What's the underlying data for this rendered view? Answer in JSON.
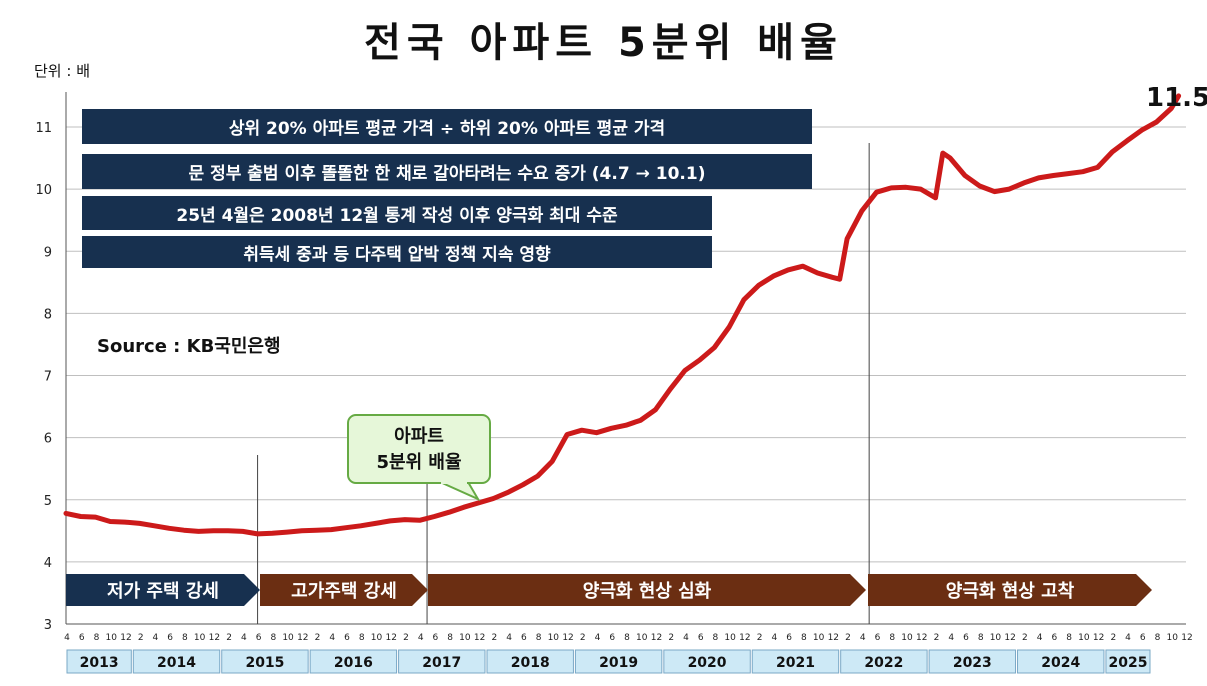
{
  "title": "전국 아파트 5분위 배율",
  "unit_label": "단위 : 배",
  "source": "Source  : KB국민은행",
  "info_boxes": [
    "상위 20% 아파트 평균 가격 ÷ 하위 20% 아파트 평균 가격",
    "문 정부 출범 이후 똘똘한 한 채로 갈아타려는 수요 증가 (4.7 → 10.1)",
    "25년 4월은 2008년 12월 통계 작성 이후 양극화 최대 수준",
    "취득세 중과 등 다주택 압박 정책 지속 영향"
  ],
  "callout_lines": [
    "아파트",
    "5분위 배율"
  ],
  "end_label": "11.5",
  "phases": [
    {
      "label": "저가 주택 강세",
      "color": "#17304f"
    },
    {
      "label": "고가주택 강세",
      "color": "#6b2e12"
    },
    {
      "label": "양극화 현상 심화",
      "color": "#6b2e12"
    },
    {
      "label": "양극화 현상 고착",
      "color": "#6b2e12"
    }
  ],
  "colors": {
    "line": "#cc1a1a",
    "box": "#17304f",
    "phase_brown": "#6b2e12",
    "year_band": "#cde9f6"
  },
  "chart_data": {
    "type": "line",
    "title": "전국 아파트 5분위 배율",
    "ylabel": "단위 : 배",
    "ylim": [
      3,
      11.5
    ],
    "y_ticks": [
      3,
      4,
      5,
      6,
      7,
      8,
      9,
      10,
      11
    ],
    "x_start": "2013-04",
    "x_end": "2025-12",
    "month_tick_labels": [
      "2",
      "4",
      "6",
      "8",
      "10",
      "12"
    ],
    "years": [
      "2013",
      "2014",
      "2015",
      "2016",
      "2017",
      "2018",
      "2019",
      "2020",
      "2021",
      "2022",
      "2023",
      "2024",
      "2025"
    ],
    "event_lines": [
      "2015-06",
      "2017-05",
      "2022-05"
    ],
    "series": [
      {
        "values": [
          [
            "2013-04",
            4.78
          ],
          [
            "2013-06",
            4.73
          ],
          [
            "2013-08",
            4.72
          ],
          [
            "2013-10",
            4.65
          ],
          [
            "2013-12",
            4.64
          ],
          [
            "2014-02",
            4.62
          ],
          [
            "2014-04",
            4.58
          ],
          [
            "2014-06",
            4.54
          ],
          [
            "2014-08",
            4.51
          ],
          [
            "2014-10",
            4.49
          ],
          [
            "2014-12",
            4.5
          ],
          [
            "2015-02",
            4.5
          ],
          [
            "2015-04",
            4.49
          ],
          [
            "2015-06",
            4.45
          ],
          [
            "2015-08",
            4.46
          ],
          [
            "2015-10",
            4.48
          ],
          [
            "2015-12",
            4.5
          ],
          [
            "2016-02",
            4.51
          ],
          [
            "2016-04",
            4.52
          ],
          [
            "2016-06",
            4.55
          ],
          [
            "2016-08",
            4.58
          ],
          [
            "2016-10",
            4.62
          ],
          [
            "2016-12",
            4.66
          ],
          [
            "2017-02",
            4.68
          ],
          [
            "2017-04",
            4.67
          ],
          [
            "2017-06",
            4.73
          ],
          [
            "2017-08",
            4.8
          ],
          [
            "2017-10",
            4.88
          ],
          [
            "2017-12",
            4.95
          ],
          [
            "2018-02",
            5.02
          ],
          [
            "2018-04",
            5.12
          ],
          [
            "2018-06",
            5.24
          ],
          [
            "2018-08",
            5.38
          ],
          [
            "2018-10",
            5.62
          ],
          [
            "2018-12",
            6.05
          ],
          [
            "2019-02",
            6.12
          ],
          [
            "2019-04",
            6.08
          ],
          [
            "2019-06",
            6.15
          ],
          [
            "2019-08",
            6.2
          ],
          [
            "2019-10",
            6.28
          ],
          [
            "2019-12",
            6.45
          ],
          [
            "2020-02",
            6.78
          ],
          [
            "2020-04",
            7.08
          ],
          [
            "2020-06",
            7.25
          ],
          [
            "2020-08",
            7.45
          ],
          [
            "2020-10",
            7.78
          ],
          [
            "2020-12",
            8.22
          ],
          [
            "2021-02",
            8.45
          ],
          [
            "2021-04",
            8.6
          ],
          [
            "2021-06",
            8.7
          ],
          [
            "2021-08",
            8.76
          ],
          [
            "2021-10",
            8.65
          ],
          [
            "2021-12",
            8.58
          ],
          [
            "2022-01",
            8.55
          ],
          [
            "2022-02",
            9.2
          ],
          [
            "2022-04",
            9.65
          ],
          [
            "2022-06",
            9.95
          ],
          [
            "2022-08",
            10.02
          ],
          [
            "2022-10",
            10.03
          ],
          [
            "2022-12",
            10.0
          ],
          [
            "2023-02",
            9.86
          ],
          [
            "2023-03",
            10.58
          ],
          [
            "2023-04",
            10.5
          ],
          [
            "2023-06",
            10.22
          ],
          [
            "2023-08",
            10.05
          ],
          [
            "2023-10",
            9.96
          ],
          [
            "2023-12",
            10.0
          ],
          [
            "2024-02",
            10.1
          ],
          [
            "2024-04",
            10.18
          ],
          [
            "2024-06",
            10.22
          ],
          [
            "2024-08",
            10.25
          ],
          [
            "2024-10",
            10.28
          ],
          [
            "2024-12",
            10.35
          ],
          [
            "2025-02",
            10.6
          ],
          [
            "2025-04",
            10.78
          ],
          [
            "2025-06",
            10.95
          ],
          [
            "2025-08",
            11.08
          ],
          [
            "2025-10",
            11.3
          ],
          [
            "2025-11",
            11.5
          ]
        ]
      }
    ],
    "annotations": [
      "11.5"
    ]
  }
}
